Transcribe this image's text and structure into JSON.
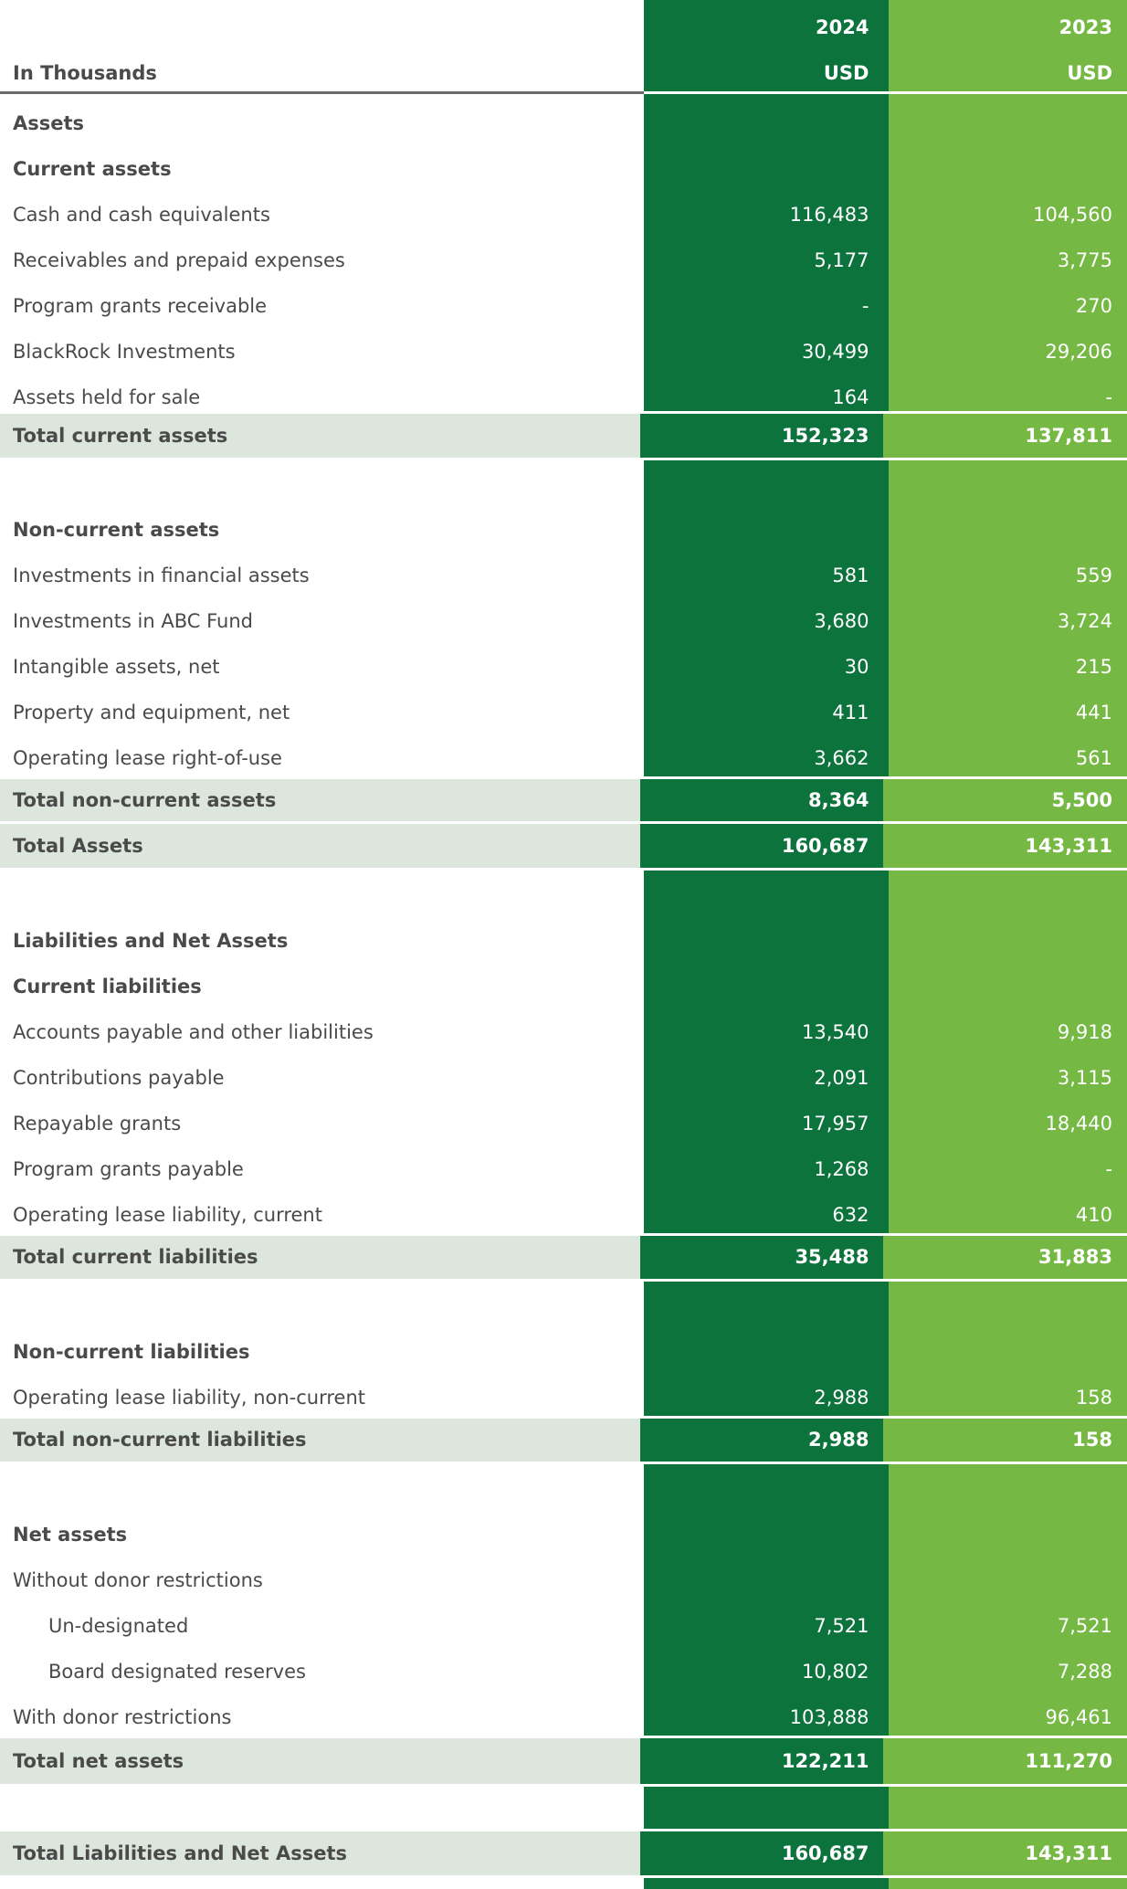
{
  "header": {
    "unit_label": "In Thousands",
    "year_2024": "2024",
    "year_2023": "2023",
    "currency_2024": "USD",
    "currency_2023": "USD"
  },
  "sections": {
    "assets": "Assets",
    "current_assets": "Current assets",
    "non_current_assets": "Non-current assets",
    "liabilities_net_assets": "Liabilities and Net Assets",
    "current_liabilities": "Current liabilities",
    "non_current_liabilities": "Non-current liabilities",
    "net_assets": "Net assets",
    "without_donor": "Without donor restrictions"
  },
  "rows": {
    "cash": {
      "label": "Cash and cash equivalents",
      "v2024": "116,483",
      "v2023": "104,560"
    },
    "receivables": {
      "label": "Receivables and prepaid expenses",
      "v2024": "5,177",
      "v2023": "3,775"
    },
    "program_grants_receivable": {
      "label": "Program grants receivable",
      "v2024": "-",
      "v2023": "270"
    },
    "blackrock": {
      "label": "BlackRock Investments",
      "v2024": "30,499",
      "v2023": "29,206"
    },
    "assets_held_for_sale": {
      "label": "Assets held for sale",
      "v2024": "164",
      "v2023": "-"
    },
    "total_current_assets": {
      "label": "Total current assets",
      "v2024": "152,323",
      "v2023": "137,811"
    },
    "investments_financial": {
      "label": "Investments in financial assets",
      "v2024": "581",
      "v2023": "559"
    },
    "investments_abc": {
      "label": "Investments in ABC Fund",
      "v2024": "3,680",
      "v2023": "3,724"
    },
    "intangible": {
      "label": "Intangible assets, net",
      "v2024": "30",
      "v2023": "215"
    },
    "property": {
      "label": "Property and equipment, net",
      "v2024": "411",
      "v2023": "441"
    },
    "lease_rou": {
      "label": "Operating lease right-of-use",
      "v2024": "3,662",
      "v2023": "561"
    },
    "total_non_current_assets": {
      "label": "Total non-current assets",
      "v2024": "8,364",
      "v2023": "5,500"
    },
    "total_assets": {
      "label": "Total Assets",
      "v2024": "160,687",
      "v2023": "143,311"
    },
    "accounts_payable": {
      "label": "Accounts payable and other liabilities",
      "v2024": "13,540",
      "v2023": "9,918"
    },
    "contributions_payable": {
      "label": "Contributions payable",
      "v2024": "2,091",
      "v2023": "3,115"
    },
    "repayable_grants": {
      "label": "Repayable grants",
      "v2024": "17,957",
      "v2023": "18,440"
    },
    "program_grants_payable": {
      "label": "Program grants payable",
      "v2024": "1,268",
      "v2023": "-"
    },
    "lease_liability_current": {
      "label": "Operating lease liability, current",
      "v2024": "632",
      "v2023": "410"
    },
    "total_current_liabilities": {
      "label": "Total current liabilities",
      "v2024": "35,488",
      "v2023": "31,883"
    },
    "lease_liability_non_current": {
      "label": "Operating lease liability, non-current",
      "v2024": "2,988",
      "v2023": "158"
    },
    "total_non_current_liabilities": {
      "label": "Total non-current liabilities",
      "v2024": "2,988",
      "v2023": "158"
    },
    "undesignated": {
      "label": "Un-designated",
      "v2024": "7,521",
      "v2023": "7,521"
    },
    "board_reserves": {
      "label": "Board designated reserves",
      "v2024": "10,802",
      "v2023": "7,288"
    },
    "with_donor": {
      "label": "With donor restrictions",
      "v2024": "103,888",
      "v2023": "96,461"
    },
    "total_net_assets": {
      "label": "Total net assets",
      "v2024": "122,211",
      "v2023": "111,270"
    },
    "total_liabilities_net_assets": {
      "label": "Total Liabilities and Net Assets",
      "v2024": "160,687",
      "v2023": "143,311"
    }
  },
  "colors": {
    "col_2024": "#0c733d",
    "col_2023": "#75b843",
    "total_row_bg": "#dde6dc",
    "text": "#4a4a4a"
  }
}
